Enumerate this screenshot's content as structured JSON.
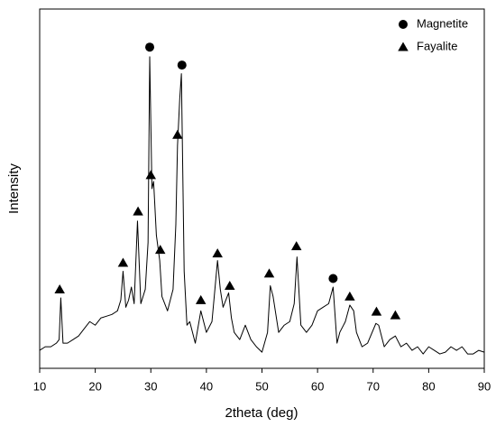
{
  "chart_data": {
    "type": "line",
    "xlabel": "2theta (deg)",
    "ylabel": "Intensity",
    "xlim": [
      10,
      90
    ],
    "xticks": [
      10,
      20,
      30,
      40,
      50,
      60,
      70,
      80,
      90
    ],
    "ylim": [
      0,
      100
    ],
    "color": "#000000",
    "legend": "upper right",
    "x": [
      10,
      11,
      12,
      13,
      13.5,
      13.8,
      14.2,
      15,
      16,
      17,
      18,
      19,
      20,
      21,
      22,
      23,
      24,
      24.6,
      25,
      25.5,
      26,
      26.5,
      27,
      27.6,
      28.2,
      29,
      29.5,
      29.8,
      30.2,
      30.5,
      31,
      31.6,
      32,
      33,
      34,
      34.5,
      34.8,
      35.2,
      35.5,
      36,
      36.5,
      37,
      38,
      39,
      40,
      41,
      42,
      42.5,
      43,
      44,
      44.5,
      45,
      46,
      47,
      48,
      49,
      50,
      51,
      51.5,
      52,
      53,
      54,
      55,
      55.8,
      56.3,
      57,
      58,
      59,
      60,
      61,
      62,
      62.8,
      63.5,
      64,
      65,
      65.8,
      66.5,
      67,
      68,
      69,
      70.5,
      71,
      72,
      73,
      74,
      75,
      76,
      77,
      78,
      79,
      80,
      81,
      82,
      83,
      84,
      85,
      86,
      87,
      88,
      89,
      90
    ],
    "values": [
      5,
      6,
      6,
      7,
      8,
      19.6,
      7,
      7,
      8,
      9,
      11,
      13,
      12,
      14,
      14.5,
      15,
      16,
      19,
      27,
      17,
      19,
      22.6,
      18,
      41,
      18,
      22,
      35,
      86.7,
      50,
      52,
      37,
      30,
      20,
      16,
      22,
      40,
      62,
      75,
      82,
      27,
      12,
      13,
      7,
      16,
      10,
      13,
      30,
      22,
      17,
      21,
      14,
      10,
      8,
      12,
      8,
      6,
      4.5,
      10,
      23,
      20,
      10,
      12,
      13,
      18,
      31,
      12,
      10,
      12,
      16,
      17,
      18,
      22.6,
      7,
      10,
      13,
      17.6,
      16,
      10,
      6,
      7,
      12.5,
      12,
      6,
      8,
      9,
      6,
      7,
      5,
      6,
      4,
      6,
      5,
      4,
      4.5,
      6,
      5,
      6,
      4,
      4,
      5,
      4.5
    ],
    "markers": [
      {
        "name": "Magnetite",
        "shape": "circle",
        "x": [
          29.8,
          35.6,
          62.8
        ],
        "y": [
          89.4,
          84.4,
          25
        ]
      },
      {
        "name": "Fayalite",
        "shape": "triangle",
        "x": [
          13.6,
          25,
          27.7,
          30,
          31.7,
          34.8,
          39,
          42,
          44.2,
          51.3,
          56.2,
          65.8,
          70.6,
          74
        ],
        "y": [
          22,
          29.4,
          43.7,
          53.8,
          33,
          65,
          19,
          32,
          23,
          26.4,
          34,
          20,
          15.8,
          14.8
        ]
      }
    ]
  }
}
